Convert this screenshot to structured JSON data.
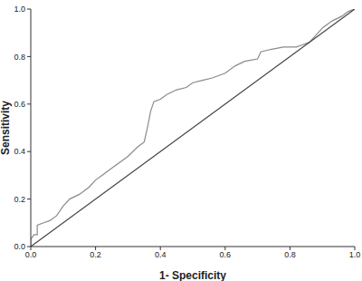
{
  "chart_data": {
    "type": "line",
    "x_label": "1- Specificity",
    "y_label": "Sensitivity",
    "xlim": [
      0,
      1
    ],
    "ylim": [
      0,
      1
    ],
    "xticks": [
      {
        "value": 0,
        "label": "0.0"
      },
      0.2,
      0.4,
      0.6,
      0.8,
      {
        "value": 1,
        "label": "1.0"
      }
    ],
    "yticks": [
      {
        "value": 0,
        "label": "0.0"
      },
      0.2,
      0.4,
      0.6,
      0.8,
      {
        "value": 1,
        "label": "1.0"
      }
    ],
    "grid": false,
    "series": [
      {
        "color": "#8a8a8a",
        "x": [
          0,
          0,
          0.01,
          0.02,
          0.02,
          0.04,
          0.06,
          0.08,
          0.1,
          0.12,
          0.15,
          0.18,
          0.2,
          0.22,
          0.25,
          0.28,
          0.3,
          0.33,
          0.35,
          0.36,
          0.37,
          0.38,
          0.4,
          0.42,
          0.45,
          0.48,
          0.5,
          0.53,
          0.56,
          0.6,
          0.63,
          0.66,
          0.7,
          0.71,
          0.74,
          0.78,
          0.82,
          0.84,
          0.86,
          0.88,
          0.9,
          0.93,
          0.96,
          0.98,
          1
        ],
        "values": [
          0,
          0.03,
          0.05,
          0.05,
          0.09,
          0.1,
          0.11,
          0.13,
          0.17,
          0.2,
          0.22,
          0.25,
          0.28,
          0.3,
          0.33,
          0.36,
          0.38,
          0.42,
          0.44,
          0.5,
          0.57,
          0.61,
          0.62,
          0.64,
          0.66,
          0.67,
          0.69,
          0.7,
          0.71,
          0.73,
          0.76,
          0.78,
          0.79,
          0.82,
          0.83,
          0.84,
          0.84,
          0.85,
          0.86,
          0.89,
          0.92,
          0.95,
          0.97,
          0.99,
          1
        ]
      },
      {
        "color": "#444444",
        "x": [
          0,
          1
        ],
        "values": [
          0,
          1
        ]
      }
    ]
  }
}
